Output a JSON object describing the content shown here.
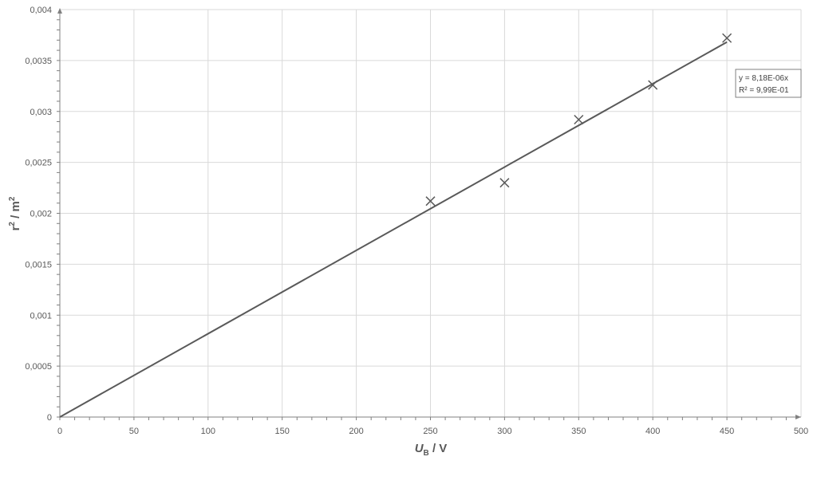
{
  "chart_data": {
    "type": "scatter",
    "xlabel": {
      "main": "U",
      "sub": "B",
      "unit": " / V"
    },
    "ylabel": {
      "main": "r",
      "sup1": "2",
      "unit": " / m",
      "sup2": "2"
    },
    "xlim": [
      0,
      500
    ],
    "ylim": [
      0,
      0.004
    ],
    "x_ticks": [
      0,
      50,
      100,
      150,
      200,
      250,
      300,
      350,
      400,
      450,
      500
    ],
    "x_tick_labels": [
      "0",
      "50",
      "100",
      "150",
      "200",
      "250",
      "300",
      "350",
      "400",
      "450",
      "500"
    ],
    "y_ticks": [
      0,
      0.0005,
      0.001,
      0.0015,
      0.002,
      0.0025,
      0.003,
      0.0035,
      0.004
    ],
    "y_tick_labels": [
      "0",
      "0,0005",
      "0,001",
      "0,0015",
      "0,002",
      "0,0025",
      "0,003",
      "0,0035",
      "0,004"
    ],
    "grid": true,
    "series": [
      {
        "marker": "x",
        "x": [
          250,
          300,
          350,
          400,
          450
        ],
        "y": [
          0.00212,
          0.0023,
          0.00292,
          0.00326,
          0.00372
        ]
      }
    ],
    "trendline": {
      "slope": 8.18e-06,
      "intercept": 0,
      "x_range": [
        0,
        450
      ]
    },
    "equation": {
      "line1": "y = 8,18E-06x",
      "line2": "R² = 9,99E-01"
    },
    "colors": {
      "grid": "#d9d9d9",
      "axis": "#808080",
      "marker": "#595959",
      "trendline": "#595959"
    }
  }
}
